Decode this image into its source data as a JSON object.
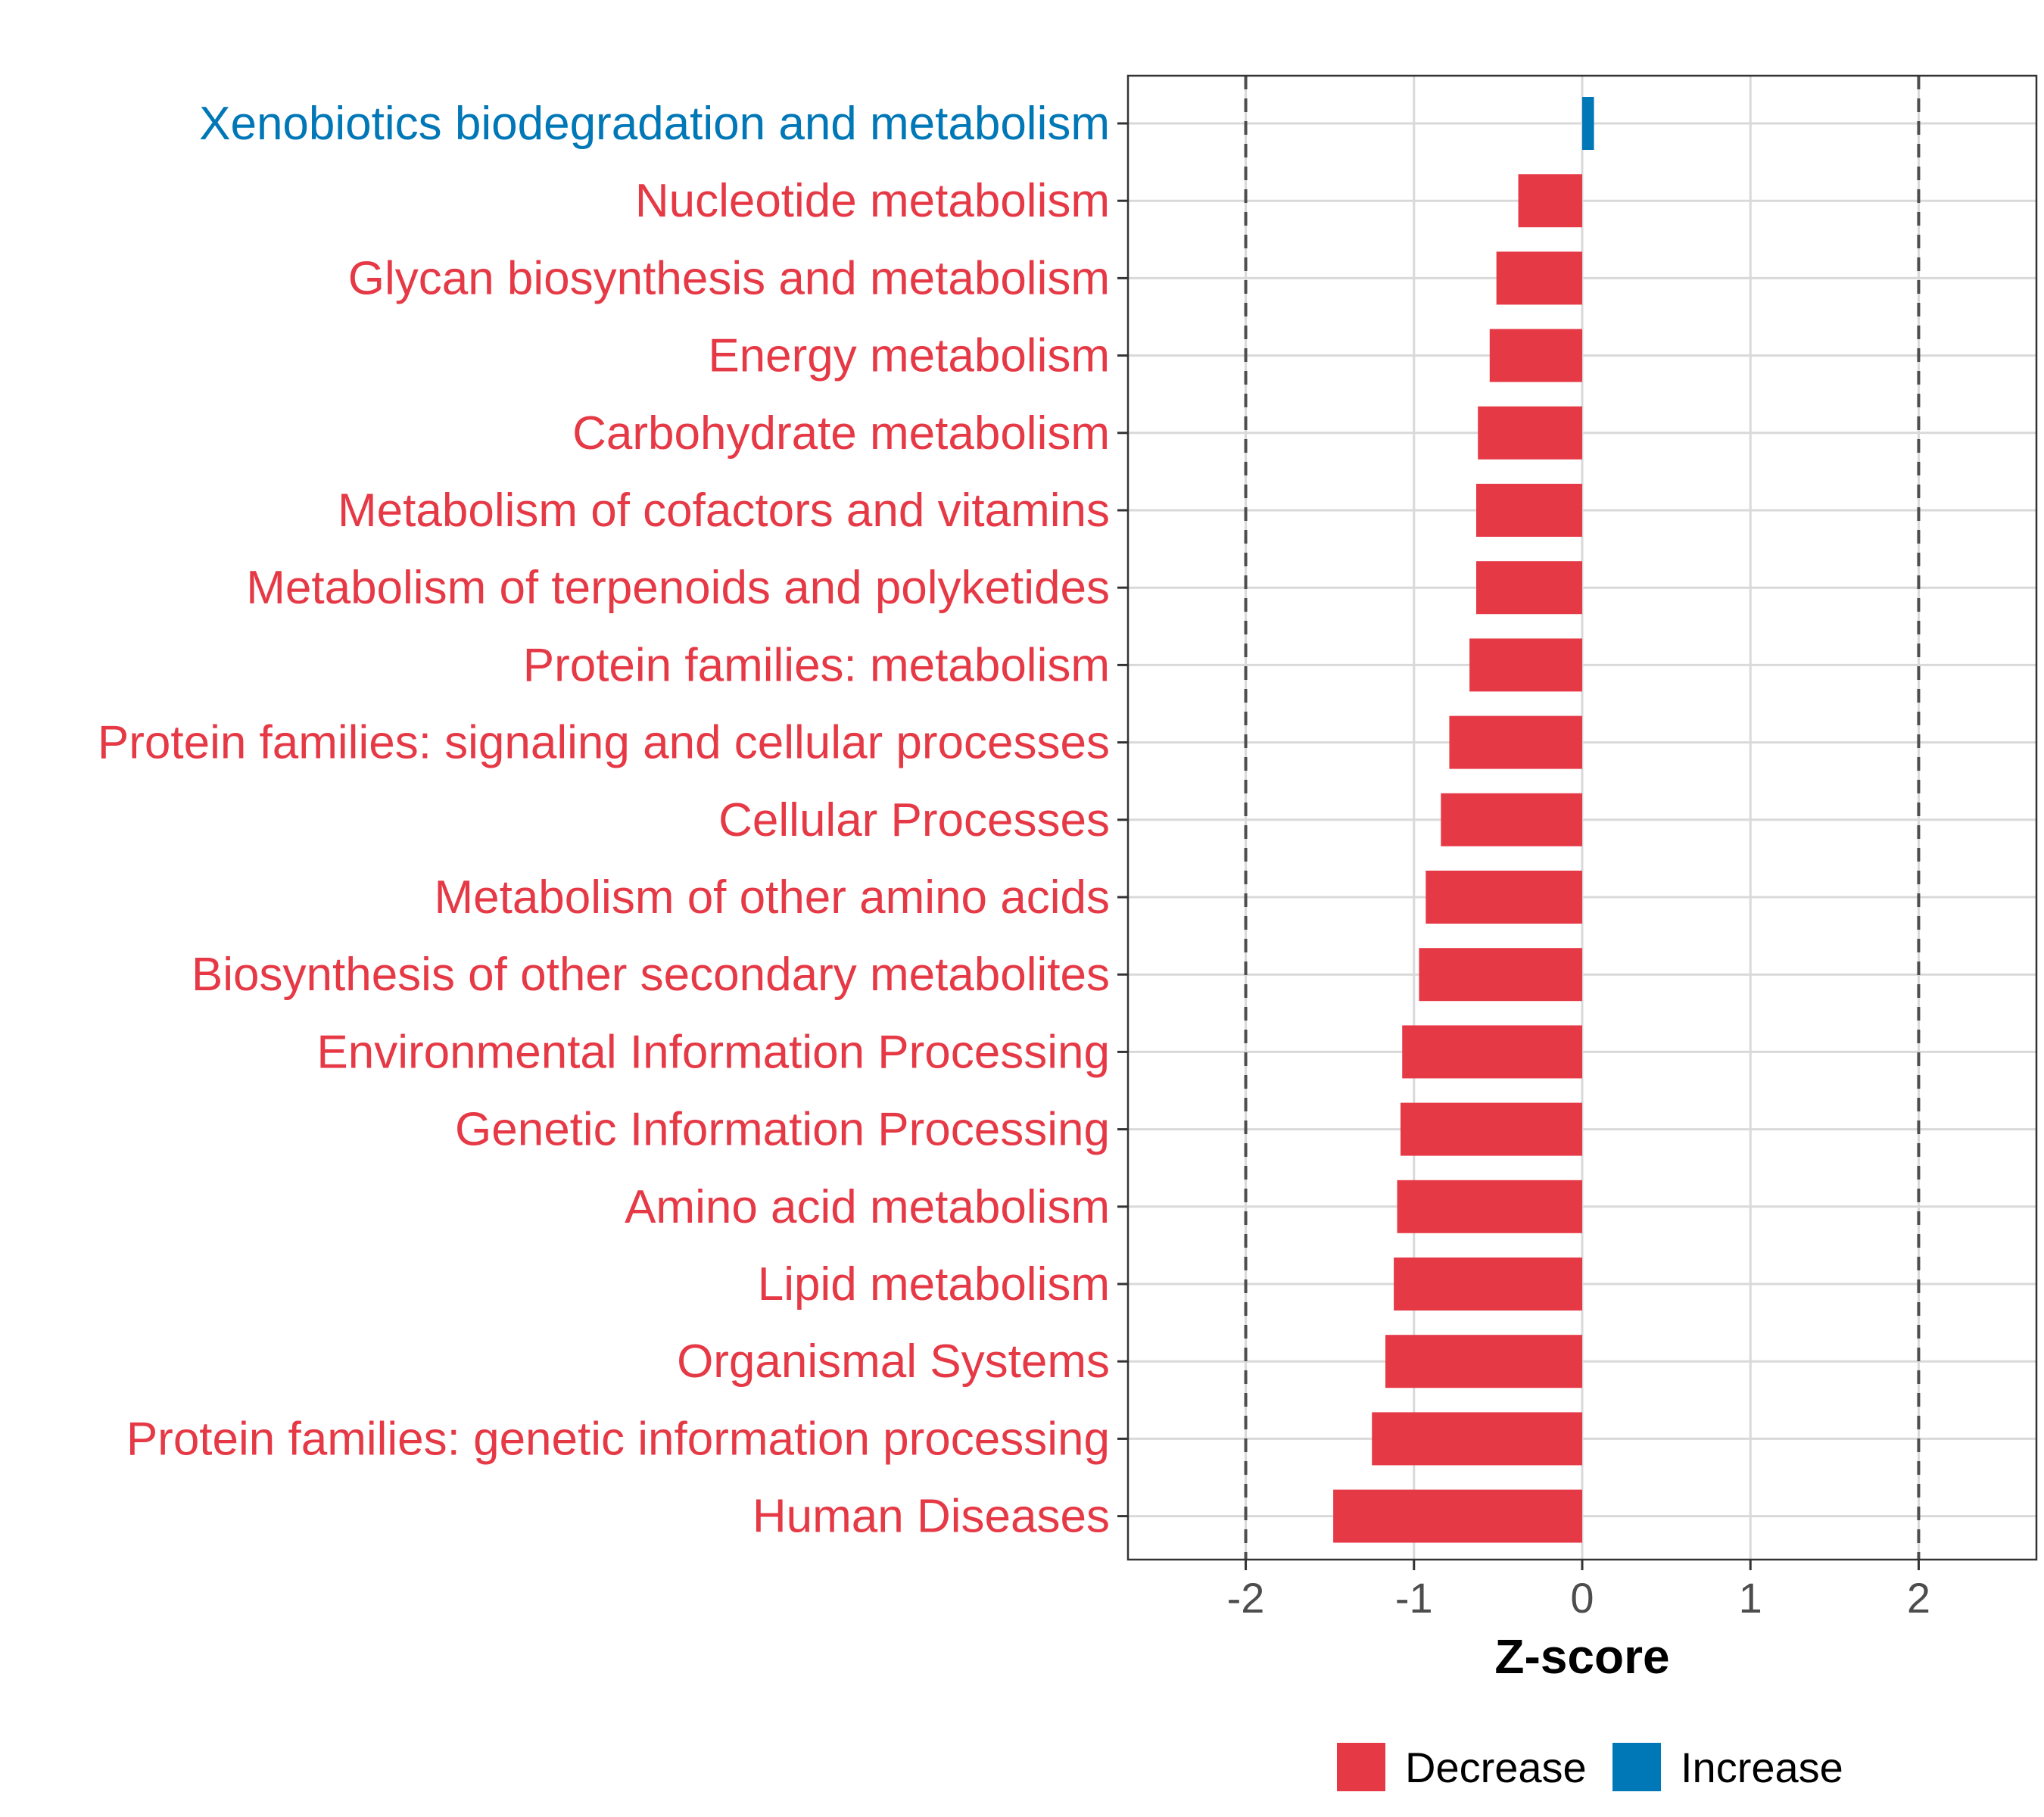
{
  "chart_data": {
    "type": "bar",
    "orientation": "horizontal",
    "xlabel": "Z-score",
    "xlim": [
      -2.7,
      2.7
    ],
    "xticks": [
      -2,
      -1,
      0,
      1,
      2
    ],
    "xtick_labels": [
      "-2",
      "-1",
      "0",
      "1",
      "2"
    ],
    "reference_lines": [
      -2,
      2
    ],
    "grid": true,
    "legend_position": "bottom",
    "colors": {
      "Decrease": "#E63946",
      "Increase": "#0077B6"
    },
    "legend": [
      {
        "label": "Decrease",
        "color": "#E63946"
      },
      {
        "label": "Increase",
        "color": "#0077B6"
      }
    ],
    "categories": [
      "Xenobiotics biodegradation and metabolism",
      "Nucleotide metabolism",
      "Glycan biosynthesis and metabolism",
      "Energy metabolism",
      "Carbohydrate metabolism",
      "Metabolism of cofactors and vitamins",
      "Metabolism of terpenoids and polyketides",
      "Protein families: metabolism",
      "Protein families: signaling and cellular processes",
      "Cellular Processes",
      "Metabolism of other amino acids",
      "Biosynthesis of other secondary metabolites",
      "Environmental Information Processing",
      "Genetic Information Processing",
      "Amino acid metabolism",
      "Lipid metabolism",
      "Organismal Systems",
      "Protein families: genetic information processing",
      "Human Diseases"
    ],
    "values": [
      0.07,
      -0.38,
      -0.51,
      -0.55,
      -0.62,
      -0.63,
      -0.63,
      -0.67,
      -0.79,
      -0.84,
      -0.93,
      -0.97,
      -1.07,
      -1.08,
      -1.1,
      -1.12,
      -1.17,
      -1.25,
      -1.48
    ],
    "groups": [
      "Increase",
      "Decrease",
      "Decrease",
      "Decrease",
      "Decrease",
      "Decrease",
      "Decrease",
      "Decrease",
      "Decrease",
      "Decrease",
      "Decrease",
      "Decrease",
      "Decrease",
      "Decrease",
      "Decrease",
      "Decrease",
      "Decrease",
      "Decrease",
      "Decrease"
    ]
  }
}
